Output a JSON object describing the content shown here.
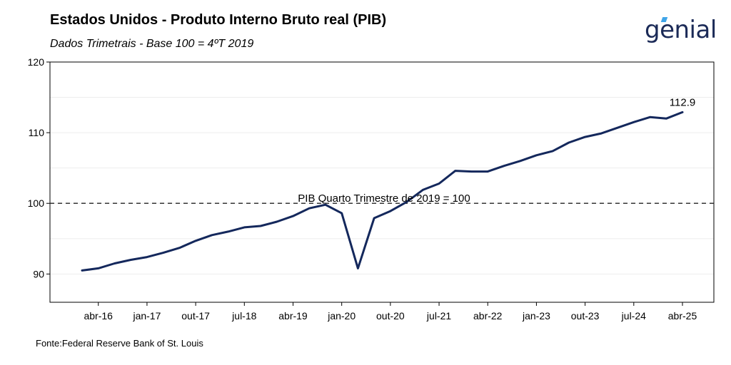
{
  "header": {
    "title": "Estados Unidos - Produto Interno Bruto real (PIB)",
    "subtitle": "Dados Trimetrais - Base 100 = 4ºT 2019"
  },
  "brand": {
    "logo_text": "genial",
    "accent_color": "#3fa5e8",
    "text_color": "#1b2a57"
  },
  "footer": {
    "source": "Fonte:Federal Reserve Bank of St. Louis"
  },
  "chart_data": {
    "type": "line",
    "title": "Estados Unidos - Produto Interno Bruto real (PIB)",
    "subtitle": "Dados Trimetrais - Base 100 = 4ºT 2019",
    "xlabel": "",
    "ylabel": "",
    "ylim": [
      86,
      120
    ],
    "yticks": [
      90,
      100,
      110,
      120
    ],
    "grid": true,
    "line_color": "#14285c",
    "x_tick_labels": [
      "abr-16",
      "jan-17",
      "out-17",
      "jul-18",
      "abr-19",
      "jan-20",
      "out-20",
      "jul-21",
      "abr-22",
      "jan-23",
      "out-23",
      "jul-24",
      "abr-25"
    ],
    "x_tick_index": [
      1,
      4,
      7,
      10,
      13,
      16,
      19,
      22,
      25,
      28,
      31,
      34,
      37
    ],
    "x": [
      "jan-16",
      "abr-16",
      "jul-16",
      "out-16",
      "jan-17",
      "abr-17",
      "jul-17",
      "out-17",
      "jan-18",
      "abr-18",
      "jul-18",
      "out-18",
      "jan-19",
      "abr-19",
      "jul-19",
      "out-19",
      "jan-20",
      "abr-20",
      "jul-20",
      "out-20",
      "jan-21",
      "abr-21",
      "jul-21",
      "out-21",
      "jan-22",
      "abr-22",
      "jul-22",
      "out-22",
      "jan-23",
      "abr-23",
      "jul-23",
      "out-23",
      "jan-24",
      "abr-24",
      "jul-24",
      "out-24",
      "jan-25",
      "abr-25"
    ],
    "series": [
      {
        "values": [
          90.5,
          90.8,
          91.5,
          92.0,
          92.4,
          93.0,
          93.7,
          94.7,
          95.5,
          96.0,
          96.6,
          96.8,
          97.4,
          98.2,
          99.3,
          99.8,
          98.6,
          90.8,
          97.9,
          98.9,
          100.2,
          101.9,
          102.8,
          104.6,
          104.5,
          104.5,
          105.3,
          106.0,
          106.8,
          107.4,
          108.6,
          109.4,
          109.9,
          110.7,
          111.5,
          112.2,
          112.0,
          112.9
        ]
      }
    ],
    "reference_line": {
      "value": 100,
      "label": "PIB Quarto Trimestre de 2019 = 100",
      "style": "dashed"
    },
    "last_value_label": "112.9"
  }
}
